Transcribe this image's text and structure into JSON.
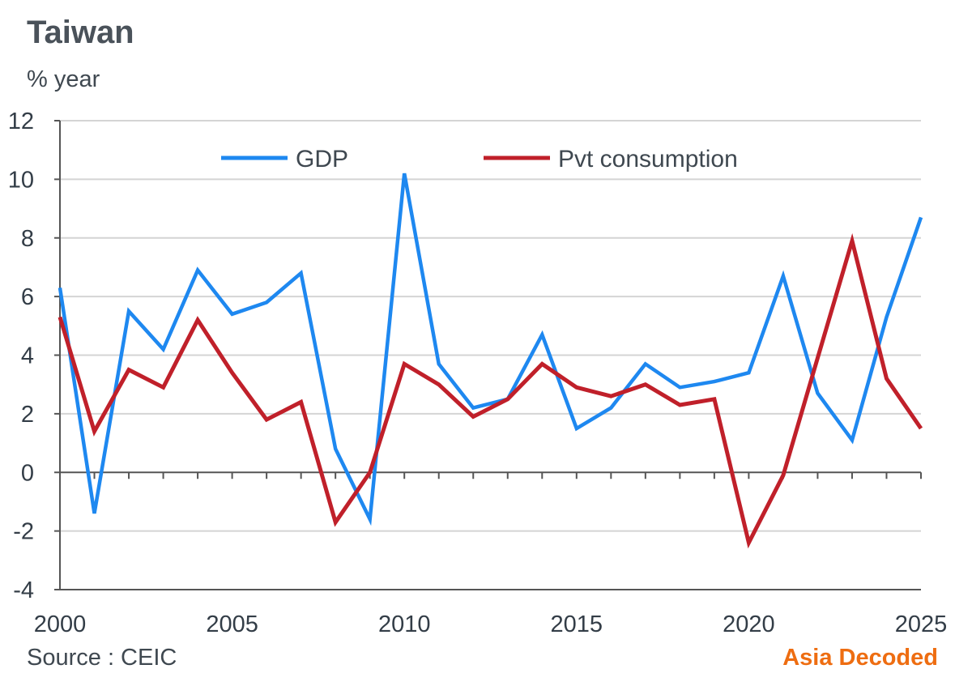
{
  "header": {
    "title": "Taiwan",
    "unit": "% year"
  },
  "footer": {
    "source": "Source : CEIC",
    "brand": "Asia Decoded"
  },
  "colors": {
    "gdp": "#1e88f0",
    "consumption": "#c0202a",
    "grid": "#d4d4d4",
    "axis": "#555555",
    "brand": "#ee6d11"
  },
  "chart_data": {
    "type": "line",
    "title": "Taiwan",
    "ylabel": "% year",
    "xlabel": "",
    "xlim": [
      2000,
      2025
    ],
    "ylim": [
      -4,
      12
    ],
    "yticks": [
      "12",
      "10",
      "8",
      "6",
      "4",
      "2",
      "0",
      "-2",
      "-4"
    ],
    "ytick_values": [
      12,
      10,
      8,
      6,
      4,
      2,
      0,
      -2,
      -4
    ],
    "xticks": [
      "2000",
      "2005",
      "2010",
      "2015",
      "2020",
      "2025"
    ],
    "xtick_values": [
      2000,
      2005,
      2010,
      2015,
      2020,
      2025
    ],
    "x": [
      2000,
      2001,
      2002,
      2003,
      2004,
      2005,
      2006,
      2007,
      2008,
      2009,
      2010,
      2011,
      2012,
      2013,
      2014,
      2015,
      2016,
      2017,
      2018,
      2019,
      2020,
      2021,
      2022,
      2023,
      2024,
      2025
    ],
    "series": [
      {
        "name": "GDP",
        "color": "#1e88f0",
        "values": [
          6.3,
          -1.4,
          5.5,
          4.2,
          6.9,
          5.4,
          5.8,
          6.8,
          0.8,
          -1.6,
          10.2,
          3.7,
          2.2,
          2.5,
          4.7,
          1.5,
          2.2,
          3.7,
          2.9,
          3.1,
          3.4,
          6.7,
          2.7,
          1.1,
          5.3,
          8.7
        ]
      },
      {
        "name": "Pvt consumption",
        "color": "#c0202a",
        "values": [
          5.3,
          1.4,
          3.5,
          2.9,
          5.2,
          3.4,
          1.8,
          2.4,
          -1.7,
          0.0,
          3.7,
          3.0,
          1.9,
          2.5,
          3.7,
          2.9,
          2.6,
          3.0,
          2.3,
          2.5,
          -2.4,
          -0.1,
          3.9,
          7.9,
          3.2,
          1.5
        ]
      }
    ],
    "legend": {
      "position": "top",
      "entries": [
        "GDP",
        "Pvt consumption"
      ]
    },
    "grid": true
  }
}
